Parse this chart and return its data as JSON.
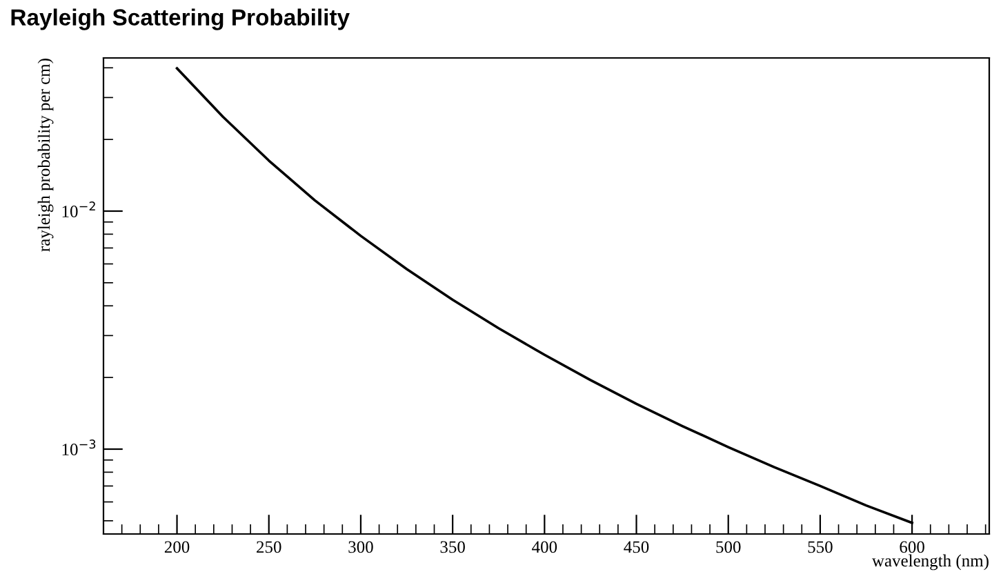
{
  "chart_data": {
    "type": "line",
    "title": "Rayleigh Scattering Probability",
    "xlabel": "wavelength (nm)",
    "ylabel": "rayleigh probability per cm)",
    "x": [
      200,
      225,
      250,
      275,
      300,
      325,
      350,
      375,
      400,
      425,
      450,
      475,
      500,
      525,
      550,
      575,
      600
    ],
    "series": [
      {
        "color": "#000000",
        "values": [
          0.0398,
          0.0249,
          0.0163,
          0.0111,
          0.00787,
          0.00571,
          0.00424,
          0.00322,
          0.00249,
          0.00195,
          0.00155,
          0.00125,
          0.00102,
          0.00084,
          0.0007,
          0.00058,
          0.00049
        ]
      }
    ],
    "log": "y",
    "xlim": [
      160,
      642
    ],
    "ylim": [
      0.00044,
      0.044
    ],
    "xticks": [
      200,
      250,
      300,
      350,
      400,
      450,
      500,
      550,
      600
    ],
    "yticks": [
      {
        "value": 0.001,
        "label": "10$^{−3}$"
      },
      {
        "value": 0.01,
        "label": "10$^{−2}$"
      }
    ],
    "grid": false,
    "legend": false,
    "marker": "none",
    "line_style": "solid"
  }
}
